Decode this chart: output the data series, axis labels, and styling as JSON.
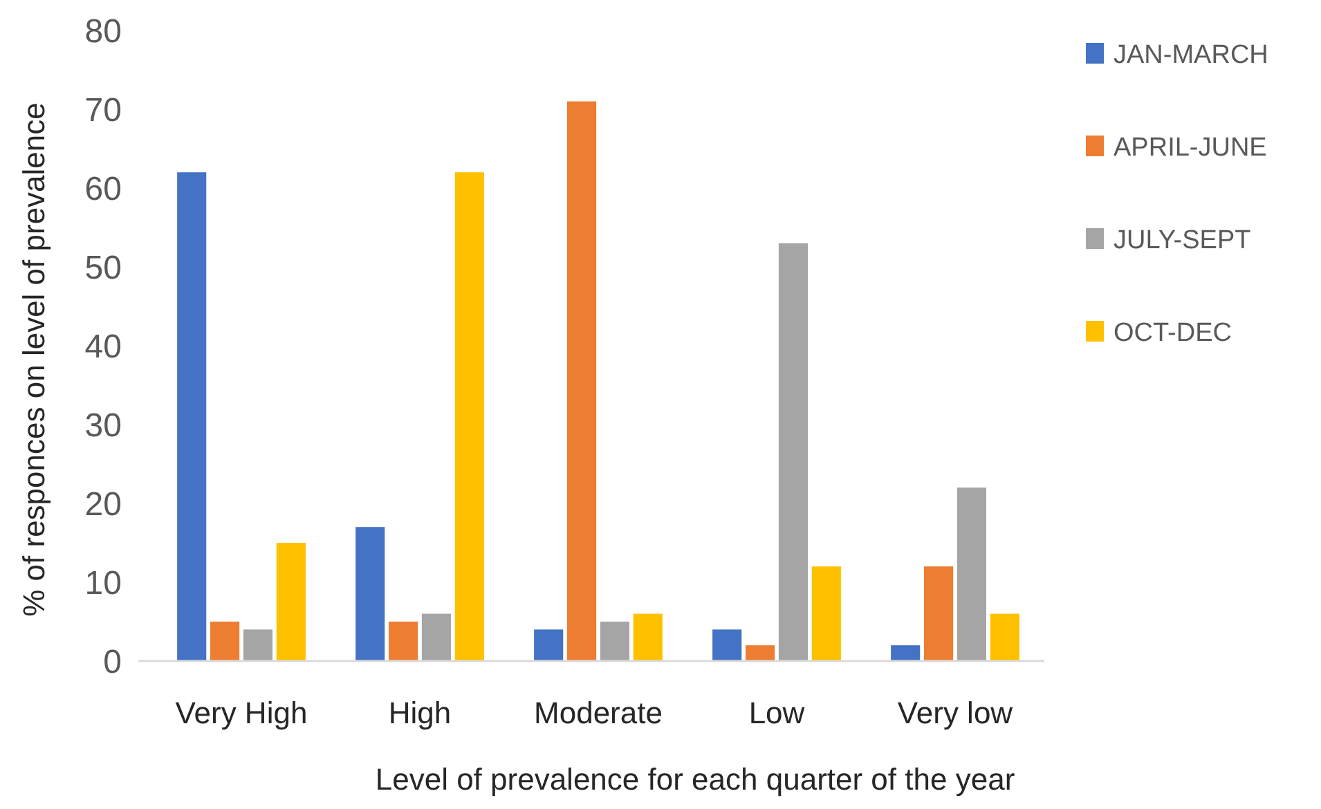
{
  "chart_data": {
    "type": "bar",
    "xlabel": "Level of prevalence for each quarter of the year",
    "ylabel": "% of responces on  level of prevalence",
    "categories": [
      "Very High",
      "High",
      "Moderate",
      "Low",
      "Very low"
    ],
    "series": [
      {
        "name": "JAN-MARCH",
        "color": "#4472c4",
        "values": [
          62,
          17,
          4,
          4,
          2
        ]
      },
      {
        "name": "APRIL-JUNE",
        "color": "#ed7d31",
        "values": [
          5,
          5,
          71,
          2,
          12
        ]
      },
      {
        "name": "JULY-SEPT",
        "color": "#a5a5a5",
        "values": [
          4,
          6,
          5,
          53,
          22
        ]
      },
      {
        "name": "OCT-DEC",
        "color": "#ffc000",
        "values": [
          15,
          62,
          6,
          12,
          6
        ]
      }
    ],
    "ylim": [
      0,
      80
    ],
    "yticks": [
      0,
      10,
      20,
      30,
      40,
      50,
      60,
      70,
      80
    ],
    "grid": false,
    "legend": "top right"
  }
}
